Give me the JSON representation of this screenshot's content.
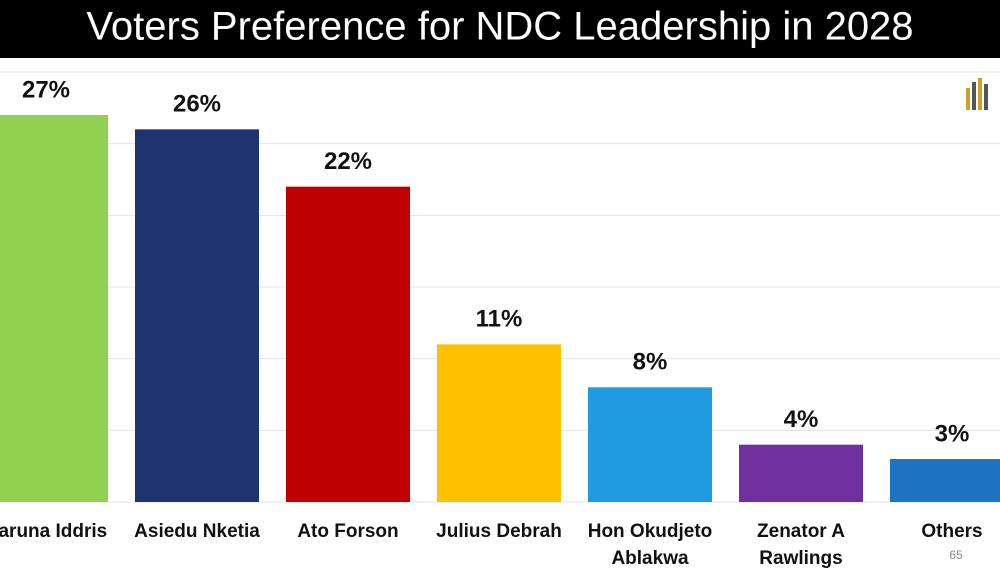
{
  "chart_data": {
    "type": "bar",
    "title": "Voters Preference for NDC Leadership in 2028",
    "categories": [
      [
        "Haruna Iddris"
      ],
      [
        "Asiedu Nketia"
      ],
      [
        "Ato Forson"
      ],
      [
        "Julius Debrah"
      ],
      [
        "Hon Okudjeto",
        "Ablakwa"
      ],
      [
        "Zenator A",
        "Rawlings"
      ],
      [
        "Others"
      ]
    ],
    "values": [
      27,
      26,
      22,
      11,
      8,
      4,
      3
    ],
    "value_labels": [
      "27%",
      "26%",
      "22%",
      "11%",
      "8%",
      "4%",
      "3%"
    ],
    "colors": [
      "#92d050",
      "#1f3370",
      "#c00000",
      "#ffc000",
      "#1e9be0",
      "#7030a0",
      "#1f73c4"
    ],
    "ylim": [
      0,
      30
    ],
    "yticks": [
      0,
      5,
      10,
      15,
      20,
      25,
      30
    ],
    "tick_labels": false,
    "grid": true,
    "slide_number": "65"
  }
}
